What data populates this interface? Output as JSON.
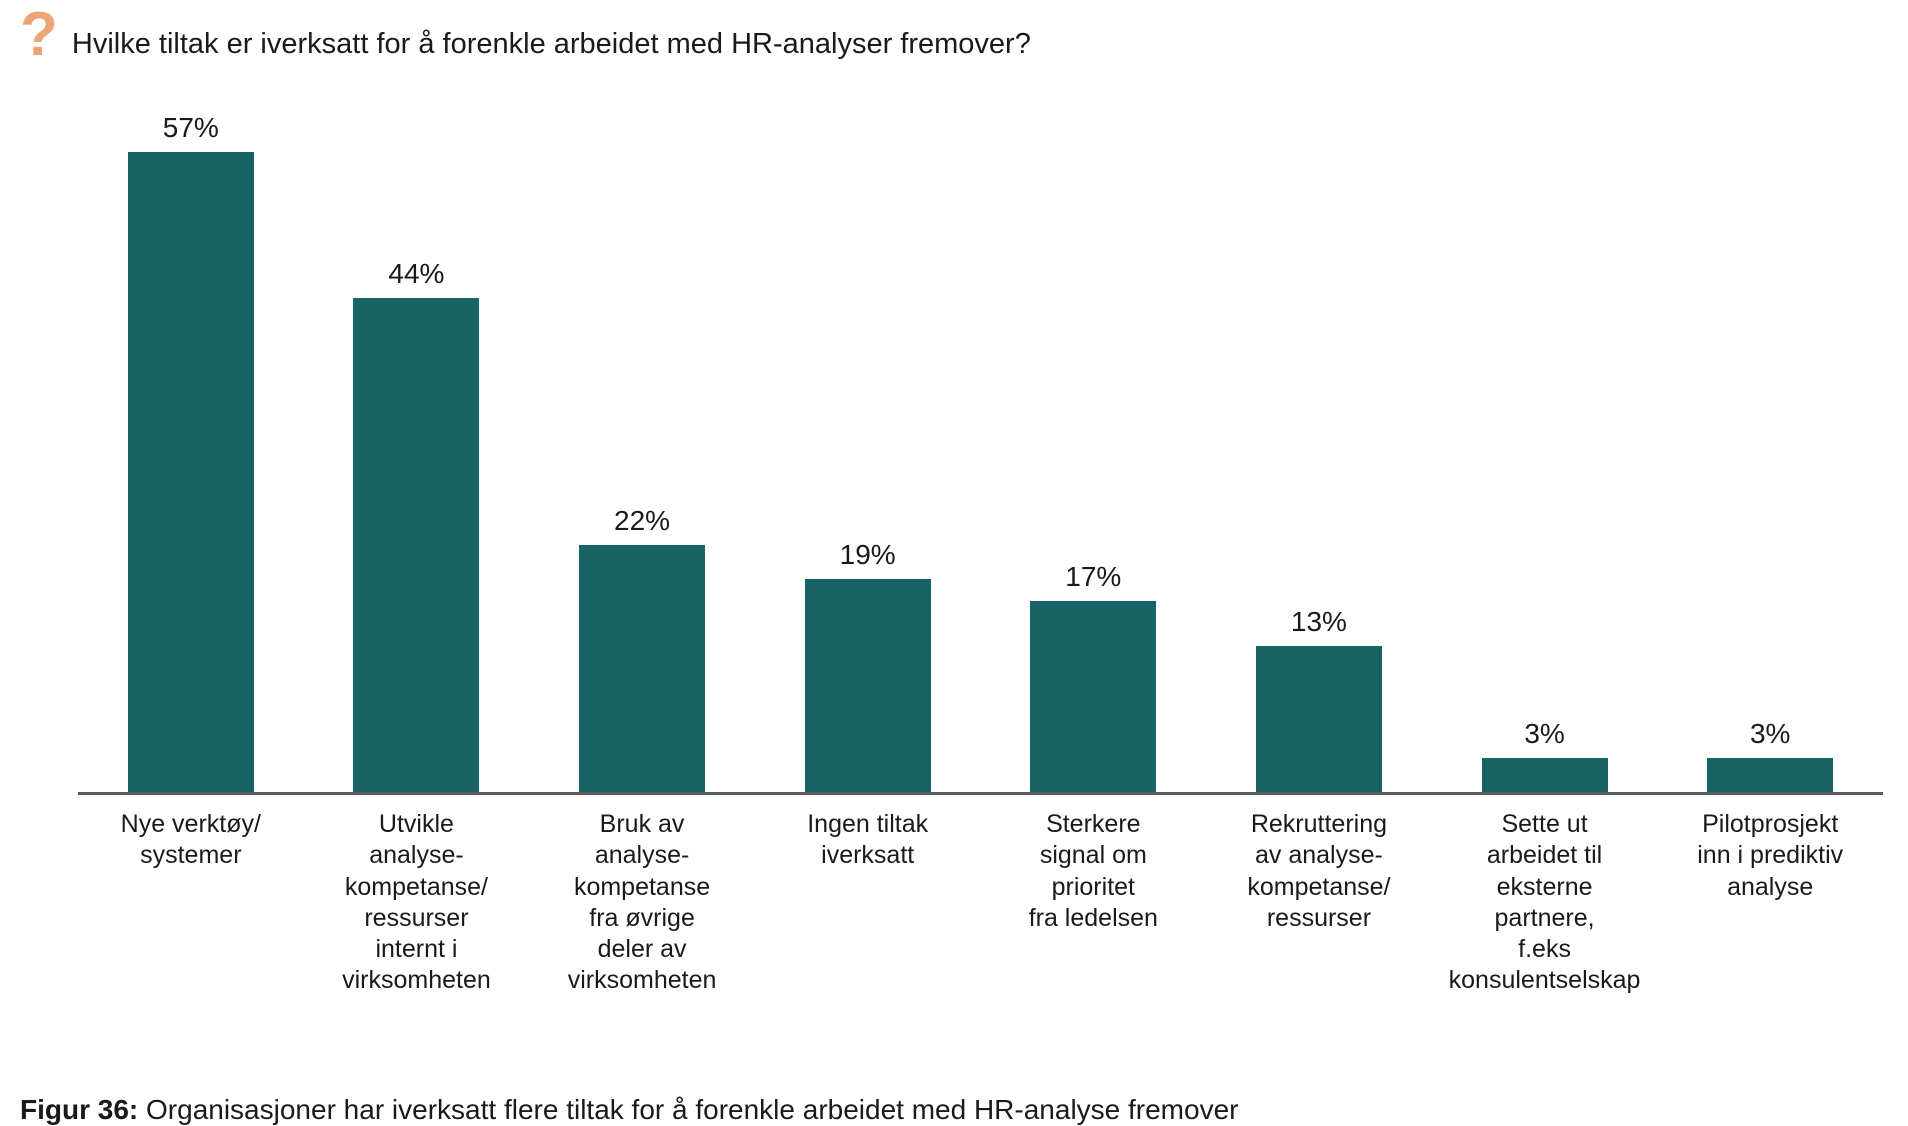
{
  "header": {
    "icon": "?",
    "icon_color": "#eda578",
    "title": "Hvilke tiltak er iverksatt for å forenkle arbeidet med HR-analyser fremover?"
  },
  "chart_data": {
    "type": "bar",
    "title": "Hvilke tiltak er iverksatt for å forenkle arbeidet med HR-analyser fremover?",
    "categories": [
      "Nye verktøy/\nsystemer",
      "Utvikle\nanalyse-\nkompetanse/\nressurser\ninternt i\nvirksomheten",
      "Bruk av\nanalyse-\nkompetanse\nfra øvrige\ndeler av\nvirksomheten",
      "Ingen tiltak\niverksatt",
      "Sterkere\nsignal om\nprioritet\nfra ledelsen",
      "Rekruttering\nav analyse-\nkompetanse/\nressurser",
      "Sette ut\narbeidet til\neksterne\npartnere,\nf.eks\nkonsulentselskap",
      "Pilotprosjekt\ninn i prediktiv\nanalyse"
    ],
    "values": [
      57,
      44,
      22,
      19,
      17,
      13,
      3,
      3
    ],
    "value_labels": [
      "57%",
      "44%",
      "22%",
      "19%",
      "17%",
      "13%",
      "3%",
      "3%"
    ],
    "bar_color": "#176366",
    "axis_color": "#595959",
    "xlabel": "",
    "ylabel": "",
    "ylim": [
      0,
      60
    ],
    "grid": false,
    "legend": false,
    "value_labels_position": "above-bars"
  },
  "caption": {
    "label": "Figur 36:",
    "text": " Organisasjoner har iverksatt flere tiltak for å forenkle arbeidet med HR-analyse fremover"
  }
}
